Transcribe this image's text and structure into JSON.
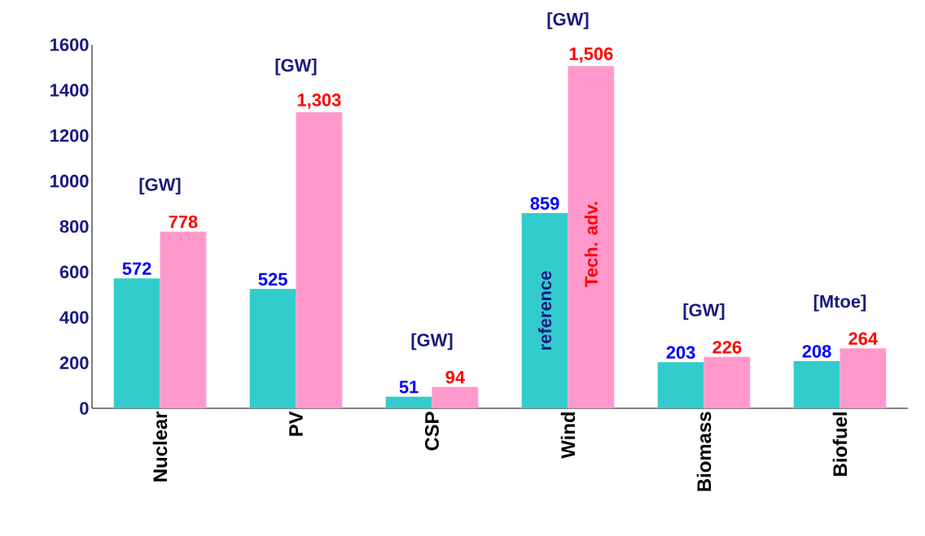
{
  "chart_data": {
    "type": "bar",
    "categories": [
      "Nuclear",
      "PV",
      "CSP",
      "Wind",
      "Biomass",
      "Biofuel"
    ],
    "series": [
      {
        "name": "reference",
        "color": "#33cccc",
        "values": [
          572,
          525,
          51,
          859,
          203,
          208
        ],
        "value_labels": [
          "572",
          "525",
          "51",
          "859",
          "203",
          "208"
        ]
      },
      {
        "name": "Tech. adv.",
        "color": "#ff99cc",
        "values": [
          778,
          1303,
          94,
          1506,
          226,
          264
        ],
        "value_labels": [
          "778",
          "1,303",
          "94",
          "1,506",
          "226",
          "264"
        ]
      }
    ],
    "ylim": [
      0,
      1600
    ],
    "yticks": [
      0,
      200,
      400,
      600,
      800,
      1000,
      1200,
      1400,
      1600
    ],
    "grid": false,
    "annotations": [
      "[GW]",
      "[GW]",
      "[GW]",
      "[GW]",
      "[GW]",
      "[Mtoe]"
    ]
  }
}
